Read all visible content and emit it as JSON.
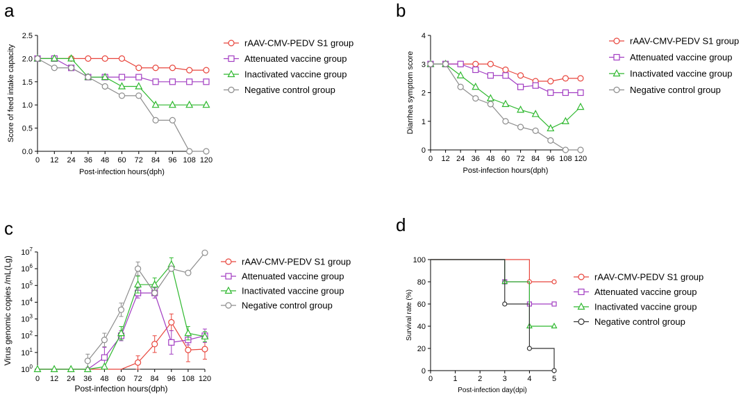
{
  "colors": {
    "rAAV": "#e8453c",
    "attenuated": "#a23dc2",
    "inactivated": "#2eb82e",
    "negative": "#8c8c8c",
    "negative_km": "#333333"
  },
  "chart_data": [
    {
      "panel_label": "a",
      "type": "line",
      "ylabel": "Score of feed intake capacity",
      "xlabel": "Post-infection hours(dph)",
      "x": [
        0,
        12,
        24,
        36,
        48,
        60,
        72,
        84,
        96,
        108,
        120
      ],
      "xticks": [
        "0",
        "12",
        "24",
        "36",
        "48",
        "60",
        "72",
        "84",
        "96",
        "108",
        "120"
      ],
      "yticks": [
        "0.0",
        "0.5",
        "1.0",
        "1.5",
        "2.0",
        "2.5"
      ],
      "ylim": [
        0,
        2.5
      ],
      "legend_position": "right",
      "series": [
        {
          "name": "rAAV-CMV-PEDV S1 group",
          "color_key": "rAAV",
          "marker": "circle",
          "values": [
            2.0,
            2.0,
            2.0,
            2.0,
            2.0,
            2.0,
            1.8,
            1.8,
            1.8,
            1.75,
            1.75
          ]
        },
        {
          "name": "Attenuated vaccine group",
          "color_key": "attenuated",
          "marker": "square",
          "values": [
            2.0,
            2.0,
            1.8,
            1.6,
            1.6,
            1.6,
            1.6,
            1.5,
            1.5,
            1.5,
            1.5
          ]
        },
        {
          "name": "Inactivated vaccine group",
          "color_key": "inactivated",
          "marker": "triangle",
          "values": [
            2.0,
            2.0,
            2.0,
            1.6,
            1.6,
            1.4,
            1.4,
            1.0,
            1.0,
            1.0,
            1.0
          ]
        },
        {
          "name": "Negative control group",
          "color_key": "negative",
          "marker": "circle",
          "values": [
            2.0,
            1.8,
            1.8,
            1.6,
            1.4,
            1.2,
            1.2,
            0.67,
            0.67,
            0.0,
            0.0
          ]
        }
      ]
    },
    {
      "panel_label": "b",
      "type": "line",
      "ylabel": "Diarrhea symptom score",
      "xlabel": "Post-infection hours(dph)",
      "x": [
        0,
        12,
        24,
        36,
        48,
        60,
        72,
        84,
        96,
        108,
        120
      ],
      "xticks": [
        "0",
        "12",
        "24",
        "36",
        "48",
        "60",
        "72",
        "84",
        "96",
        "108",
        "120"
      ],
      "yticks": [
        "0",
        "1",
        "2",
        "3",
        "4"
      ],
      "ylim": [
        0,
        4
      ],
      "legend_position": "right",
      "series": [
        {
          "name": "rAAV-CMV-PEDV S1 group",
          "color_key": "rAAV",
          "marker": "circle",
          "values": [
            3.0,
            3.0,
            3.0,
            3.0,
            3.0,
            2.8,
            2.6,
            2.4,
            2.4,
            2.5,
            2.5
          ]
        },
        {
          "name": "Attenuated vaccine group",
          "color_key": "attenuated",
          "marker": "square",
          "values": [
            3.0,
            3.0,
            3.0,
            2.8,
            2.6,
            2.6,
            2.2,
            2.25,
            2.0,
            2.0,
            2.0
          ]
        },
        {
          "name": "Inactivated vaccine group",
          "color_key": "inactivated",
          "marker": "triangle",
          "values": [
            3.0,
            3.0,
            2.6,
            2.2,
            1.8,
            1.6,
            1.4,
            1.25,
            0.75,
            1.0,
            1.5
          ]
        },
        {
          "name": "Negative control group",
          "color_key": "negative",
          "marker": "circle",
          "values": [
            3.0,
            3.0,
            2.2,
            1.8,
            1.6,
            1.0,
            0.8,
            0.67,
            0.33,
            0.0,
            0.0
          ]
        }
      ]
    },
    {
      "panel_label": "c",
      "type": "line",
      "ylabel": "Virus genomic copies /mL(Lg)",
      "xlabel": "Post-infection hours(dph)",
      "x": [
        0,
        12,
        24,
        36,
        48,
        60,
        72,
        84,
        96,
        108,
        120
      ],
      "xticks": [
        "0",
        "12",
        "24",
        "36",
        "48",
        "60",
        "72",
        "84",
        "96",
        "108",
        "120"
      ],
      "yscale": "log10",
      "ylim_log10": [
        0,
        7
      ],
      "ytick_exponents": [
        0,
        1,
        2,
        3,
        4,
        5,
        6,
        7
      ],
      "ytick_base": "10",
      "legend_position": "right",
      "series": [
        {
          "name": "rAAV-CMV-PEDV S1 group",
          "color_key": "rAAV",
          "marker": "circle",
          "log_values": [
            0,
            0,
            0,
            0,
            0,
            0,
            0.4,
            1.5,
            2.8,
            1.15,
            1.2
          ],
          "log_err": [
            null,
            null,
            null,
            null,
            null,
            null,
            0.4,
            0.5,
            0.5,
            0.7,
            0.6
          ]
        },
        {
          "name": "Attenuated vaccine group",
          "color_key": "attenuated",
          "marker": "square",
          "log_values": [
            0,
            0,
            0,
            0,
            0.7,
            2.0,
            4.55,
            4.55,
            1.6,
            1.75,
            2.0
          ],
          "log_err": [
            null,
            null,
            null,
            null,
            0.6,
            0.3,
            0.3,
            0.3,
            0.7,
            0.3,
            0.4
          ]
        },
        {
          "name": "Inactivated vaccine group",
          "color_key": "inactivated",
          "marker": "triangle",
          "log_values": [
            0,
            0,
            0,
            0,
            0.15,
            2.15,
            5.05,
            5.05,
            6.25,
            2.15,
            1.95
          ],
          "log_err": [
            null,
            null,
            null,
            null,
            null,
            0.4,
            0.5,
            0.4,
            0.4,
            0.4,
            0.3
          ]
        },
        {
          "name": "Negative control group",
          "color_key": "negative",
          "marker": "circle",
          "log_values": [
            null,
            null,
            null,
            0.5,
            1.75,
            3.55,
            6.0,
            4.55,
            6.0,
            5.75,
            6.95
          ],
          "log_err": [
            null,
            null,
            null,
            0.4,
            0.4,
            0.4,
            0.4,
            null,
            null,
            null,
            null
          ]
        }
      ]
    },
    {
      "panel_label": "d",
      "type": "line",
      "subtype": "survival-step",
      "ylabel": "Survival rate (%)",
      "xlabel": "Post-infection day(dpi)",
      "xticks": [
        "0",
        "1",
        "2",
        "3",
        "4",
        "5"
      ],
      "xlim": [
        0,
        5
      ],
      "yticks": [
        "0",
        "20",
        "40",
        "60",
        "80",
        "100"
      ],
      "ylim": [
        0,
        100
      ],
      "legend_position": "right",
      "series": [
        {
          "name": "rAAV-CMV-PEDV S1 group",
          "color_key": "rAAV",
          "marker": "circle",
          "steps": [
            [
              0,
              100
            ],
            [
              4,
              80
            ],
            [
              5,
              80
            ]
          ],
          "markers": [
            [
              4,
              80
            ],
            [
              5,
              80
            ]
          ]
        },
        {
          "name": "Attenuated vaccine group",
          "color_key": "attenuated",
          "marker": "square",
          "steps": [
            [
              0,
              100
            ],
            [
              3,
              80
            ],
            [
              4,
              60
            ],
            [
              5,
              60
            ]
          ],
          "markers": [
            [
              3,
              80
            ],
            [
              4,
              60
            ],
            [
              5,
              60
            ]
          ]
        },
        {
          "name": "Inactivated vaccine group",
          "color_key": "inactivated",
          "marker": "triangle",
          "steps": [
            [
              0,
              100
            ],
            [
              3,
              80
            ],
            [
              4,
              40
            ],
            [
              5,
              40
            ]
          ],
          "markers": [
            [
              3,
              80
            ],
            [
              4,
              40
            ],
            [
              5,
              40
            ]
          ]
        },
        {
          "name": "Negative control group",
          "color_key": "negative_km",
          "marker": "circle",
          "steps": [
            [
              0,
              100
            ],
            [
              3,
              60
            ],
            [
              4,
              20
            ],
            [
              5,
              0
            ]
          ],
          "markers": [
            [
              3,
              60
            ],
            [
              4,
              20
            ],
            [
              5,
              0
            ]
          ]
        }
      ]
    }
  ]
}
